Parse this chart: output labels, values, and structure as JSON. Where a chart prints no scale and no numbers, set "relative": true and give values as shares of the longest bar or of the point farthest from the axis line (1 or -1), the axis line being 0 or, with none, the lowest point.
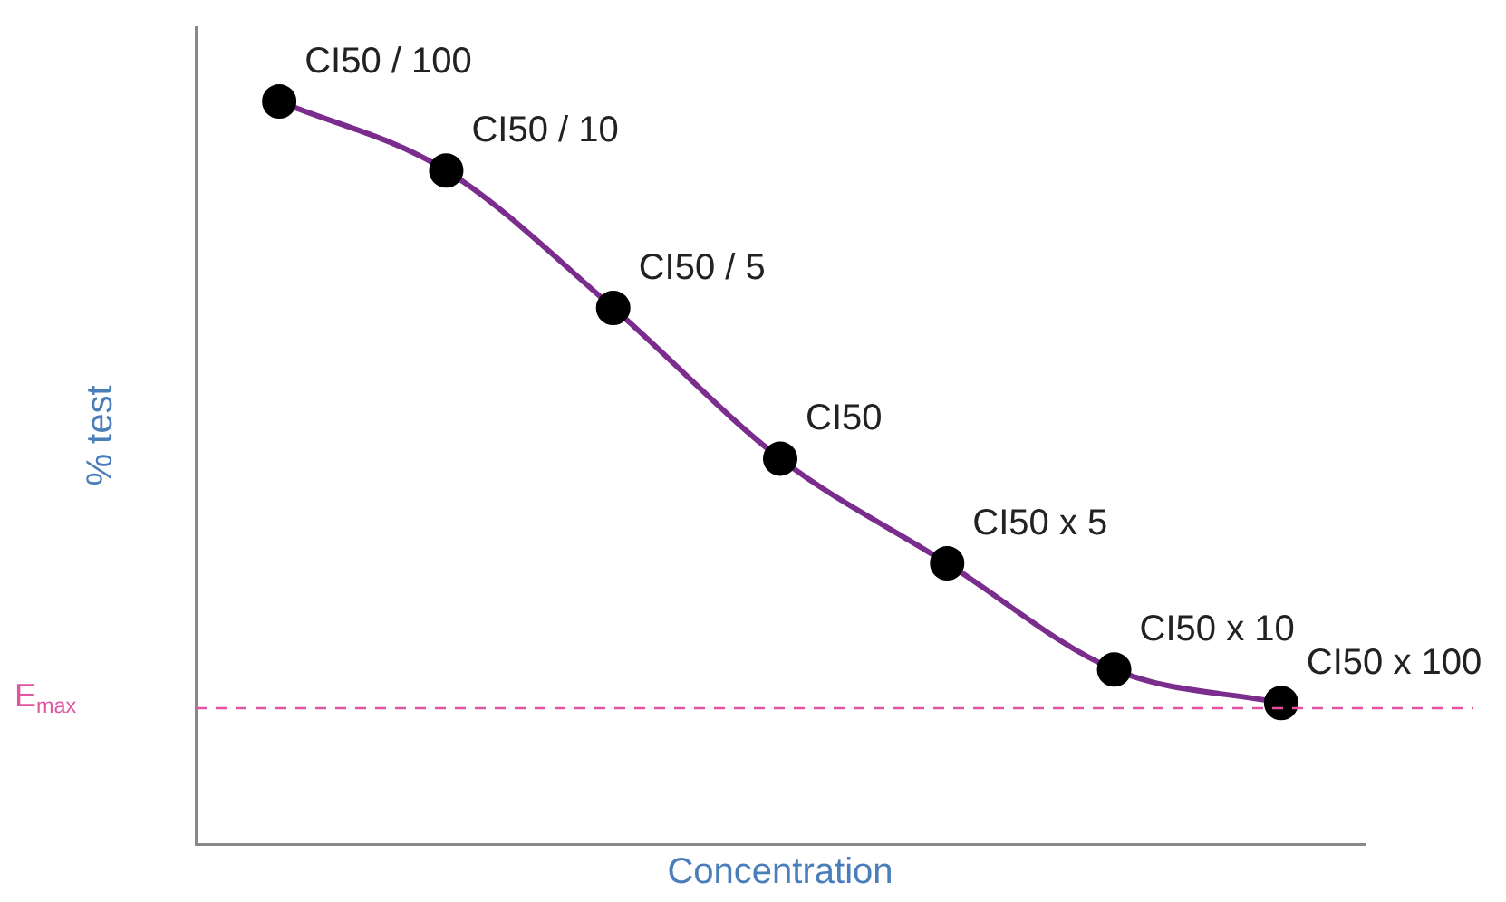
{
  "chart_data": {
    "type": "line",
    "relative": true,
    "xlabel": "Concentration",
    "ylabel": "% test",
    "categories": [
      null,
      null,
      null,
      null,
      null,
      null,
      null
    ],
    "series": [
      {
        "color": "#7b2d8e",
        "values": [
          1,
          0.907,
          0.722,
          0.519,
          0.378,
          0.235,
          0.19
        ]
      }
    ],
    "annotations": [
      "CI50 / 100",
      "CI50 / 10",
      "CI50 / 5",
      "CI50",
      "CI50 x 5",
      "CI50 x 10",
      "CI50 x 100"
    ],
    "marker": "circle",
    "line_style": "solid",
    "grid": false,
    "legend": false,
    "ref_lines": [
      {
        "axis": "y",
        "value": 0.183,
        "label": "E$_{max}$",
        "color": "#e0559f",
        "line_style": "dashed"
      }
    ]
  }
}
